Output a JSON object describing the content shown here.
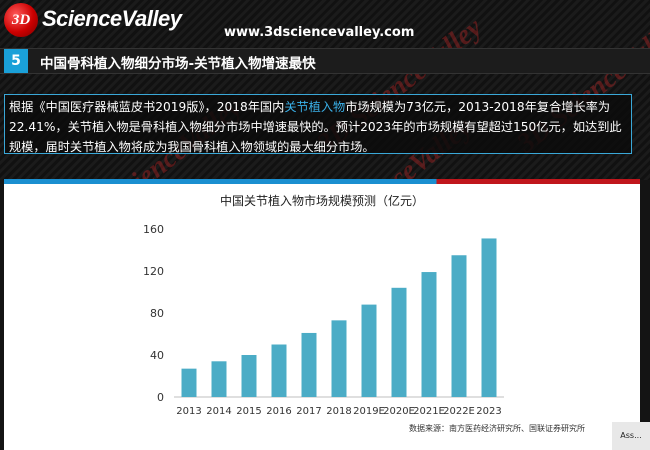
{
  "header": {
    "logo_mark": "3D",
    "logo_text": "ScienceValley",
    "site_url": "www.3dsciencevalley.com",
    "watermark": "3D ScienceValley"
  },
  "section": {
    "number": "5",
    "title": "中国骨科植入物细分市场-关节植入物增速最快"
  },
  "description": {
    "text_before": "根据《中国医疗器械蓝皮书2019版》，2018年国内",
    "highlight": "关节植入物",
    "text_after": "市场规模为73亿元，2013-2018年复合增长率为22.41%，关节植入物是骨科植入物细分市场中增速最快的。预计2023年的市场规模有望超过150亿元，如达到此规模，届时关节植入物将成为我国骨科植入物领域的最大细分市场。"
  },
  "chart_data": {
    "type": "bar",
    "title": "中国关节植入物市场规模预测（亿元）",
    "categories": [
      "2013",
      "2014",
      "2015",
      "2016",
      "2017",
      "2018",
      "2019E",
      "2020E",
      "2021E",
      "2022E",
      "2023"
    ],
    "values": [
      27,
      34,
      40,
      50,
      61,
      73,
      88,
      104,
      119,
      135,
      151
    ],
    "ylim": [
      0,
      160
    ],
    "yticks": [
      0,
      40,
      80,
      120,
      160
    ],
    "xlabel": "",
    "ylabel": "",
    "grid": false,
    "bar_color": "#4bacc6"
  },
  "source_note": "数据来源：南方医药经济研究所、国联证券研究所",
  "corner_tag": "Ass..."
}
